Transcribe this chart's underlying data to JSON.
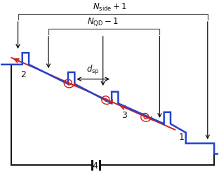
{
  "bg_color": "#ffffff",
  "blue_color": "#2244cc",
  "red_color": "#cc2222",
  "black_color": "#111111",
  "gray_color": "#555555",
  "lw_blue": 1.8,
  "lw_red": 1.4,
  "lw_black": 1.4,
  "figw": 3.12,
  "figh": 2.45,
  "dpi": 100,
  "xlim": [
    0,
    10
  ],
  "ylim": [
    0,
    8.5
  ]
}
